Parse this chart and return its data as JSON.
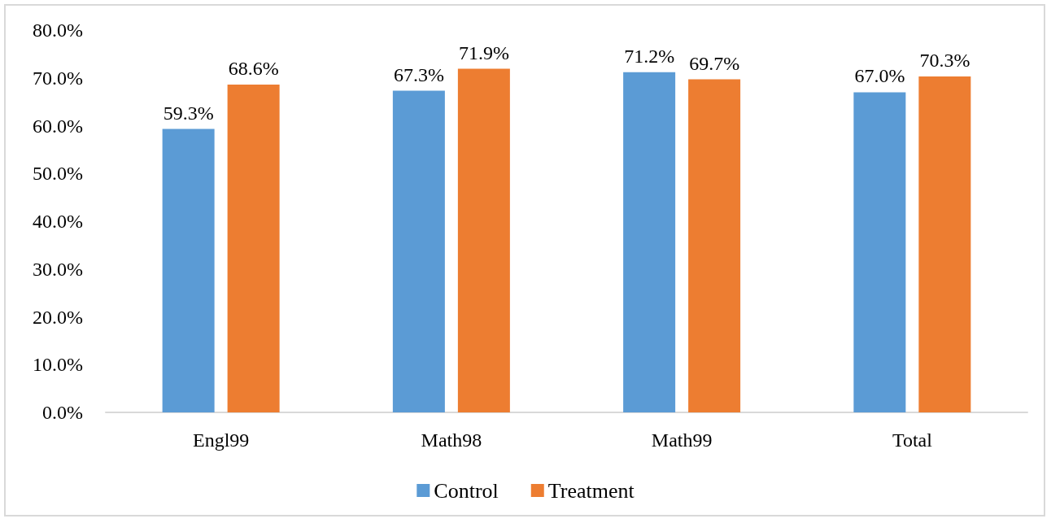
{
  "chart_data": {
    "type": "bar",
    "categories": [
      "Engl99",
      "Math98",
      "Math99",
      "Total"
    ],
    "series": [
      {
        "name": "Control",
        "color": "#5b9bd5",
        "values": [
          59.3,
          67.3,
          71.2,
          67.0
        ],
        "value_labels": [
          "59.3%",
          "67.3%",
          "71.2%",
          "67.0%"
        ]
      },
      {
        "name": "Treatment",
        "color": "#ed7d31",
        "values": [
          68.6,
          71.9,
          69.7,
          70.3
        ],
        "value_labels": [
          "68.6%",
          "71.9%",
          "69.7%",
          "70.3%"
        ]
      }
    ],
    "ylim": [
      0,
      80
    ],
    "yticks": [
      {
        "value": 0,
        "label": "0.0%"
      },
      {
        "value": 10,
        "label": "10.0%"
      },
      {
        "value": 20,
        "label": "20.0%"
      },
      {
        "value": 30,
        "label": "30.0%"
      },
      {
        "value": 40,
        "label": "40.0%"
      },
      {
        "value": 50,
        "label": "50.0%"
      },
      {
        "value": 60,
        "label": "60.0%"
      },
      {
        "value": 70,
        "label": "70.0%"
      },
      {
        "value": 80,
        "label": "80.0%"
      }
    ],
    "grid": false,
    "legend": "bottom"
  }
}
